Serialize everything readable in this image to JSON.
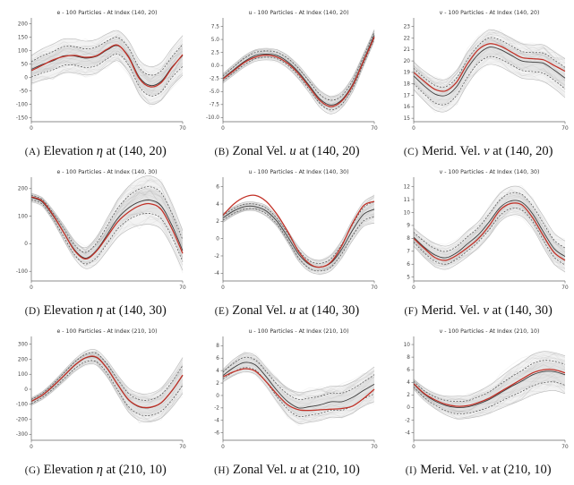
{
  "page": {
    "background": "#ffffff"
  },
  "colors": {
    "truth_line": "#c22f25",
    "ensemble_mean": "#3c3c3c",
    "quantile_dashed": "#4a4a4a",
    "envelope": "#b8b8b8",
    "band_outer": "#e9e9e9",
    "band_inner": "#d6d6d6",
    "spine": "#666666",
    "title_text": "#333333",
    "tick_text": "#444444",
    "caption_text": "#111111"
  },
  "chart_data": [
    {
      "id": "A",
      "type": "line",
      "title": "e - 100 Particles - At Index (140, 20)",
      "caption": {
        "letter": "A",
        "name": "Elevation",
        "symbol": "η",
        "rest": "at (140, 20)"
      },
      "x": [
        0,
        5,
        10,
        15,
        20,
        25,
        30,
        35,
        40,
        45,
        50,
        55,
        60,
        65,
        70
      ],
      "xticks": [
        "0",
        "70"
      ],
      "yticks": [
        "200",
        "150",
        "100",
        "50",
        "0",
        "-50",
        "-100",
        "-150"
      ],
      "ylim": [
        -165,
        215
      ],
      "truth": [
        25,
        45,
        65,
        78,
        82,
        75,
        80,
        105,
        120,
        75,
        -5,
        -35,
        -20,
        35,
        85
      ],
      "ensemble_mean": [
        30,
        48,
        62,
        80,
        80,
        72,
        78,
        102,
        118,
        78,
        0,
        -30,
        -15,
        38,
        82
      ],
      "spread": [
        52,
        58,
        62,
        63,
        63,
        63,
        63,
        60,
        56,
        58,
        64,
        70,
        70,
        70,
        74
      ]
    },
    {
      "id": "B",
      "type": "line",
      "title": "u - 100 Particles - At Index (140, 20)",
      "caption": {
        "letter": "B",
        "name": "Zonal Vel.",
        "symbol": "u",
        "rest": "at (140, 20)"
      },
      "x": [
        0,
        5,
        10,
        15,
        20,
        25,
        30,
        35,
        40,
        45,
        50,
        55,
        60,
        65,
        70
      ],
      "xticks": [
        "0",
        "70"
      ],
      "yticks": [
        "7.5",
        "5.0",
        "2.5",
        "0.0",
        "-2.5",
        "-5.0",
        "-7.5",
        "-10.0"
      ],
      "ylim": [
        -10.8,
        8.8
      ],
      "truth": [
        -2.6,
        -1.0,
        0.6,
        1.6,
        2.0,
        1.6,
        0.4,
        -1.6,
        -4.2,
        -6.8,
        -7.9,
        -6.8,
        -3.8,
        0.8,
        5.5
      ],
      "ensemble_mean": [
        -2.5,
        -0.8,
        0.8,
        1.9,
        2.2,
        1.9,
        0.7,
        -1.3,
        -3.9,
        -6.5,
        -7.6,
        -6.6,
        -3.6,
        1.0,
        5.8
      ],
      "spread": [
        0.9,
        1.0,
        1.1,
        1.1,
        1.1,
        1.1,
        1.2,
        1.3,
        1.4,
        1.6,
        1.7,
        1.5,
        1.4,
        1.2,
        1.1
      ]
    },
    {
      "id": "C",
      "type": "line",
      "title": "v - 100 Particles - At Index (140, 20)",
      "caption": {
        "letter": "C",
        "name": "Merid. Vel.",
        "symbol": "v",
        "rest": "at (140, 20)"
      },
      "x": [
        0,
        5,
        10,
        15,
        20,
        25,
        30,
        35,
        40,
        45,
        50,
        55,
        60,
        65,
        70
      ],
      "xticks": [
        "0",
        "70"
      ],
      "yticks": [
        "23",
        "22",
        "21",
        "20",
        "19",
        "18",
        "17",
        "16",
        "15"
      ],
      "ylim": [
        14.7,
        23.6
      ],
      "truth": [
        19.0,
        18.2,
        17.5,
        17.4,
        18.2,
        19.8,
        21.0,
        21.5,
        21.3,
        20.8,
        20.3,
        20.2,
        20.1,
        19.6,
        19.1
      ],
      "ensemble_mean": [
        18.7,
        17.8,
        17.1,
        17.0,
        17.8,
        19.4,
        20.6,
        21.2,
        21.0,
        20.5,
        20.0,
        19.9,
        19.8,
        19.2,
        18.5
      ],
      "spread": [
        1.2,
        1.3,
        1.4,
        1.4,
        1.4,
        1.4,
        1.4,
        1.5,
        1.5,
        1.5,
        1.5,
        1.5,
        1.6,
        1.6,
        1.7
      ]
    },
    {
      "id": "D",
      "type": "line",
      "title": "e - 100 Particles - At Index (140, 30)",
      "caption": {
        "letter": "D",
        "name": "Elevation",
        "symbol": "η",
        "rest": "at (140, 30)"
      },
      "x": [
        0,
        5,
        10,
        15,
        20,
        25,
        30,
        35,
        40,
        45,
        50,
        55,
        60,
        65,
        70
      ],
      "xticks": [
        "0",
        "70"
      ],
      "yticks": [
        "200",
        "100",
        "0",
        "-100"
      ],
      "ylim": [
        -135,
        235
      ],
      "truth": [
        170,
        155,
        105,
        40,
        -25,
        -55,
        -28,
        25,
        80,
        115,
        138,
        145,
        125,
        55,
        -35
      ],
      "ensemble_mean": [
        168,
        152,
        102,
        40,
        -22,
        -52,
        -25,
        32,
        92,
        130,
        152,
        158,
        138,
        68,
        -25
      ],
      "spread": [
        15,
        15,
        20,
        28,
        32,
        38,
        48,
        58,
        68,
        78,
        85,
        88,
        85,
        78,
        72
      ]
    },
    {
      "id": "E",
      "type": "line",
      "title": "u - 100 Particles - At Index (140, 30)",
      "caption": {
        "letter": "E",
        "name": "Zonal Vel.",
        "symbol": "u",
        "rest": "at (140, 30)"
      },
      "x": [
        0,
        5,
        10,
        15,
        20,
        25,
        30,
        35,
        40,
        45,
        50,
        55,
        60,
        65,
        70
      ],
      "xticks": [
        "0",
        "70"
      ],
      "yticks": [
        "6",
        "4",
        "2",
        "0",
        "-2",
        "-4"
      ],
      "ylim": [
        -4.9,
        6.9
      ],
      "truth": [
        2.7,
        4.0,
        4.8,
        5.0,
        4.3,
        2.8,
        0.8,
        -1.5,
        -2.9,
        -3.3,
        -2.7,
        -0.8,
        1.8,
        3.8,
        4.3
      ],
      "ensemble_mean": [
        2.4,
        3.2,
        3.7,
        3.7,
        3.2,
        2.0,
        0.2,
        -1.8,
        -3.0,
        -3.3,
        -2.8,
        -1.2,
        1.0,
        2.8,
        3.4
      ],
      "spread": [
        0.5,
        0.5,
        0.5,
        0.5,
        0.6,
        0.6,
        0.7,
        0.8,
        0.8,
        0.8,
        0.9,
        1.0,
        1.2,
        1.4,
        1.6
      ]
    },
    {
      "id": "F",
      "type": "line",
      "title": "v - 100 Particles - At Index (140, 30)",
      "caption": {
        "letter": "F",
        "name": "Merid. Vel.",
        "symbol": "v",
        "rest": "at (140, 30)"
      },
      "x": [
        0,
        5,
        10,
        15,
        20,
        25,
        30,
        35,
        40,
        45,
        50,
        55,
        60,
        65,
        70
      ],
      "xticks": [
        "0",
        "70"
      ],
      "yticks": [
        "12",
        "11",
        "10",
        "9",
        "8",
        "7",
        "6",
        "5"
      ],
      "ylim": [
        4.7,
        12.6
      ],
      "truth": [
        8.0,
        7.2,
        6.5,
        6.3,
        6.7,
        7.3,
        8.0,
        9.0,
        10.2,
        10.7,
        10.6,
        9.6,
        8.2,
        6.9,
        6.3
      ],
      "ensemble_mean": [
        8.1,
        7.3,
        6.7,
        6.5,
        6.9,
        7.6,
        8.3,
        9.3,
        10.4,
        10.9,
        10.8,
        9.9,
        8.5,
        7.2,
        6.6
      ],
      "spread": [
        0.7,
        0.8,
        0.9,
        0.9,
        0.9,
        1.0,
        1.0,
        1.1,
        1.1,
        1.1,
        1.1,
        1.1,
        1.2,
        1.2,
        1.2
      ]
    },
    {
      "id": "G",
      "type": "line",
      "title": "e - 100 Particles - At Index (210, 10)",
      "caption": {
        "letter": "G",
        "name": "Elevation",
        "symbol": "η",
        "rest": "at (210, 10)"
      },
      "x": [
        0,
        5,
        10,
        15,
        20,
        25,
        30,
        35,
        40,
        45,
        50,
        55,
        60,
        65,
        70
      ],
      "xticks": [
        "0",
        "70"
      ],
      "yticks": [
        "300",
        "200",
        "100",
        "0",
        "-100",
        "-200",
        "-300"
      ],
      "ylim": [
        -340,
        340
      ],
      "truth": [
        -80,
        -40,
        20,
        90,
        160,
        210,
        215,
        140,
        30,
        -70,
        -115,
        -120,
        -90,
        -10,
        95
      ],
      "ensemble_mean": [
        -82,
        -42,
        18,
        88,
        158,
        208,
        212,
        138,
        28,
        -72,
        -118,
        -122,
        -92,
        -12,
        92
      ],
      "spread": [
        25,
        25,
        30,
        35,
        40,
        45,
        50,
        55,
        65,
        80,
        90,
        95,
        100,
        110,
        120
      ]
    },
    {
      "id": "H",
      "type": "line",
      "title": "u - 100 Particles - At Index (210, 10)",
      "caption": {
        "letter": "H",
        "name": "Zonal Vel.",
        "symbol": "u",
        "rest": "at (210, 10)"
      },
      "x": [
        0,
        5,
        10,
        15,
        20,
        25,
        30,
        35,
        40,
        45,
        50,
        55,
        60,
        65,
        70
      ],
      "xticks": [
        "0",
        "70"
      ],
      "yticks": [
        "8",
        "6",
        "4",
        "2",
        "0",
        "-2",
        "-4",
        "-6"
      ],
      "ylim": [
        -7.2,
        9.2
      ],
      "truth": [
        3.0,
        3.8,
        4.3,
        3.9,
        2.2,
        0.2,
        -1.5,
        -2.3,
        -2.4,
        -2.3,
        -2.2,
        -2.1,
        -1.7,
        -0.5,
        1.0
      ],
      "ensemble_mean": [
        3.2,
        4.5,
        5.3,
        4.9,
        3.0,
        0.8,
        -1.0,
        -2.0,
        -1.8,
        -1.5,
        -1.0,
        -1.0,
        -0.3,
        0.8,
        1.8
      ],
      "spread": [
        1.0,
        1.3,
        1.5,
        1.5,
        1.5,
        1.8,
        2.2,
        2.5,
        2.5,
        2.5,
        2.5,
        2.5,
        2.5,
        2.5,
        2.8
      ]
    },
    {
      "id": "I",
      "type": "line",
      "title": "v - 100 Particles - At Index (210, 10)",
      "caption": {
        "letter": "I",
        "name": "Merid. Vel.",
        "symbol": "v",
        "rest": "at (210, 10)"
      },
      "x": [
        0,
        5,
        10,
        15,
        20,
        25,
        30,
        35,
        40,
        45,
        50,
        55,
        60,
        65,
        70
      ],
      "xticks": [
        "0",
        "70"
      ],
      "yticks": [
        "10",
        "8",
        "6",
        "4",
        "2",
        "0",
        "-2",
        "-4"
      ],
      "ylim": [
        -5.2,
        11.0
      ],
      "truth": [
        3.8,
        2.2,
        1.2,
        0.5,
        0.2,
        0.3,
        0.8,
        1.5,
        2.5,
        3.5,
        4.5,
        5.5,
        6.0,
        6.0,
        5.5
      ],
      "ensemble_mean": [
        3.7,
        2.1,
        1.0,
        0.3,
        0.0,
        0.1,
        0.6,
        1.3,
        2.3,
        3.3,
        4.2,
        5.2,
        5.7,
        5.7,
        5.2
      ],
      "spread": [
        0.8,
        1.0,
        1.2,
        1.5,
        1.8,
        1.8,
        2.0,
        2.2,
        2.5,
        2.8,
        3.0,
        3.2,
        3.2,
        3.0,
        3.0
      ]
    }
  ]
}
